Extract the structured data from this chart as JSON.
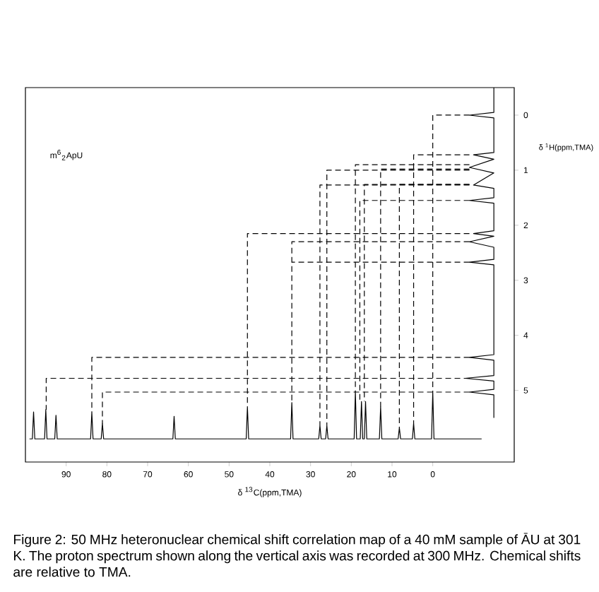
{
  "chart_data": {
    "type": "line",
    "xlabel": "δ $^{13}$C(ppm,TMA)",
    "ylabel": "δ $^{1}$H(ppm,TMA)",
    "annotations": [
      "m$^{6}$$_{2}$ApU",
      "Figure 2: 50 MHz heteronuclear chemical shift correlation map of a 40 mM sample of ĀU at 301 K. The proton spectrum shown along the vertical axis was recorded at 300 MHz. Chemical shifts are relative to TMA."
    ],
    "xlim": [
      100,
      -20
    ],
    "xticks": [
      90,
      80,
      70,
      60,
      50,
      40,
      30,
      20,
      10,
      0
    ],
    "ylim": [
      6.3,
      -0.5
    ],
    "yticks": [
      0,
      1,
      2,
      3,
      4,
      5
    ],
    "marker": "none",
    "series": [
      {
        "color": "#000000",
        "line_style": "solid",
        "x": [
          99,
          98.3,
          98,
          97.7,
          95.3,
          95,
          94.7,
          92.8,
          92.5,
          92.2,
          84,
          83.7,
          83.4,
          81.4,
          81.1,
          80.8,
          63.8,
          63.5,
          63.2,
          45.8,
          45.5,
          45.2,
          34.9,
          34.6,
          34.3,
          28,
          27.7,
          27.4,
          26.3,
          26,
          25.7,
          19.3,
          19,
          18.7,
          17.8,
          17.5,
          17.2,
          16.8,
          16.5,
          16.2,
          13.1,
          12.8,
          12.5,
          8.5,
          8.2,
          7.9,
          5,
          4.7,
          4.4,
          0.3,
          0,
          -0.3,
          -12
        ],
        "values": [
          5.88,
          5.88,
          5.39,
          5.88,
          5.88,
          5.35,
          5.88,
          5.88,
          5.45,
          5.88,
          5.88,
          5.4,
          5.88,
          5.88,
          5.6,
          5.88,
          5.88,
          5.47,
          5.88,
          5.88,
          5.3,
          5.88,
          5.88,
          5.22,
          5.88,
          5.88,
          5.64,
          5.88,
          5.88,
          5.64,
          5.88,
          5.88,
          5.02,
          5.88,
          5.88,
          5.2,
          5.88,
          5.88,
          5.2,
          5.88,
          5.88,
          5.3,
          5.88,
          5.88,
          5.68,
          5.88,
          5.88,
          5.6,
          5.88,
          5.88,
          5.03,
          5.88,
          5.88
        ]
      },
      {
        "color": "#000000",
        "line_style": "solid",
        "x": [
          -15,
          -15,
          -9,
          -15,
          -15,
          -10,
          -15,
          -9,
          -15,
          -10,
          -15,
          -15,
          -9,
          -15,
          -15,
          -10,
          -15,
          -9,
          -15,
          -15,
          -9,
          -15,
          -15,
          -9,
          -15,
          -15,
          -8,
          -15,
          -15,
          -9,
          -15,
          -15
        ],
        "values": [
          -0.5,
          -0.05,
          0,
          0.05,
          0.68,
          0.72,
          0.8,
          0.95,
          1.05,
          1.27,
          1.33,
          1.5,
          1.55,
          1.6,
          2.1,
          2.15,
          2.2,
          2.3,
          2.4,
          2.62,
          2.67,
          2.72,
          4.35,
          4.4,
          4.45,
          4.73,
          4.78,
          4.83,
          4.98,
          5.03,
          5.08,
          5.5
        ]
      },
      {
        "color": "#000000",
        "line_style": "dashed",
        "x": [
          -9,
          0,
          0
        ],
        "values": [
          0,
          0,
          5.03
        ]
      },
      {
        "color": "#000000",
        "line_style": "dashed",
        "x": [
          -9,
          4.7,
          4.7
        ],
        "values": [
          0.72,
          0.72,
          5.6
        ]
      },
      {
        "color": "#000000",
        "line_style": "dashed",
        "x": [
          -9,
          19,
          19
        ],
        "values": [
          0.9,
          0.9,
          5.02
        ]
      },
      {
        "color": "#000000",
        "line_style": "dashed",
        "x": [
          -9,
          12.8,
          12.8
        ],
        "values": [
          0.98,
          0.98,
          5.3
        ]
      },
      {
        "color": "#000000",
        "line_style": "dashed",
        "x": [
          -9,
          26,
          26
        ],
        "values": [
          1.0,
          1.0,
          5.64
        ]
      },
      {
        "color": "#000000",
        "line_style": "dashed",
        "x": [
          -9,
          27.7,
          27.7
        ],
        "values": [
          1.27,
          1.27,
          5.64
        ]
      },
      {
        "color": "#000000",
        "line_style": "dashed",
        "x": [
          -9,
          16.8,
          16.8
        ],
        "values": [
          1.26,
          1.26,
          5.2
        ]
      },
      {
        "color": "#000000",
        "line_style": "dashed",
        "x": [
          -9,
          8.2,
          8.2
        ],
        "values": [
          1.26,
          1.26,
          5.68
        ]
      },
      {
        "color": "#000000",
        "line_style": "dashed",
        "x": [
          -9,
          17.9,
          17.9
        ],
        "values": [
          1.55,
          1.55,
          5.2
        ]
      },
      {
        "color": "#000000",
        "line_style": "dashed",
        "x": [
          -9,
          45.5,
          45.5
        ],
        "values": [
          2.15,
          2.15,
          5.3
        ]
      },
      {
        "color": "#000000",
        "line_style": "dashed",
        "x": [
          -9,
          34.6,
          34.6
        ],
        "values": [
          2.3,
          2.3,
          5.22
        ]
      },
      {
        "color": "#000000",
        "line_style": "dashed",
        "x": [
          -9,
          34.6
        ],
        "values": [
          2.67,
          2.67
        ]
      },
      {
        "color": "#000000",
        "line_style": "dashed",
        "x": [
          -9,
          83.7,
          83.7
        ],
        "values": [
          4.4,
          4.4,
          5.4
        ]
      },
      {
        "color": "#000000",
        "line_style": "dashed",
        "x": [
          -9,
          94.9,
          94.9
        ],
        "values": [
          4.78,
          4.78,
          5.35
        ]
      },
      {
        "color": "#000000",
        "line_style": "dashed",
        "x": [
          -9,
          81.1,
          81.1
        ],
        "values": [
          5.03,
          5.03,
          5.6
        ]
      }
    ]
  }
}
